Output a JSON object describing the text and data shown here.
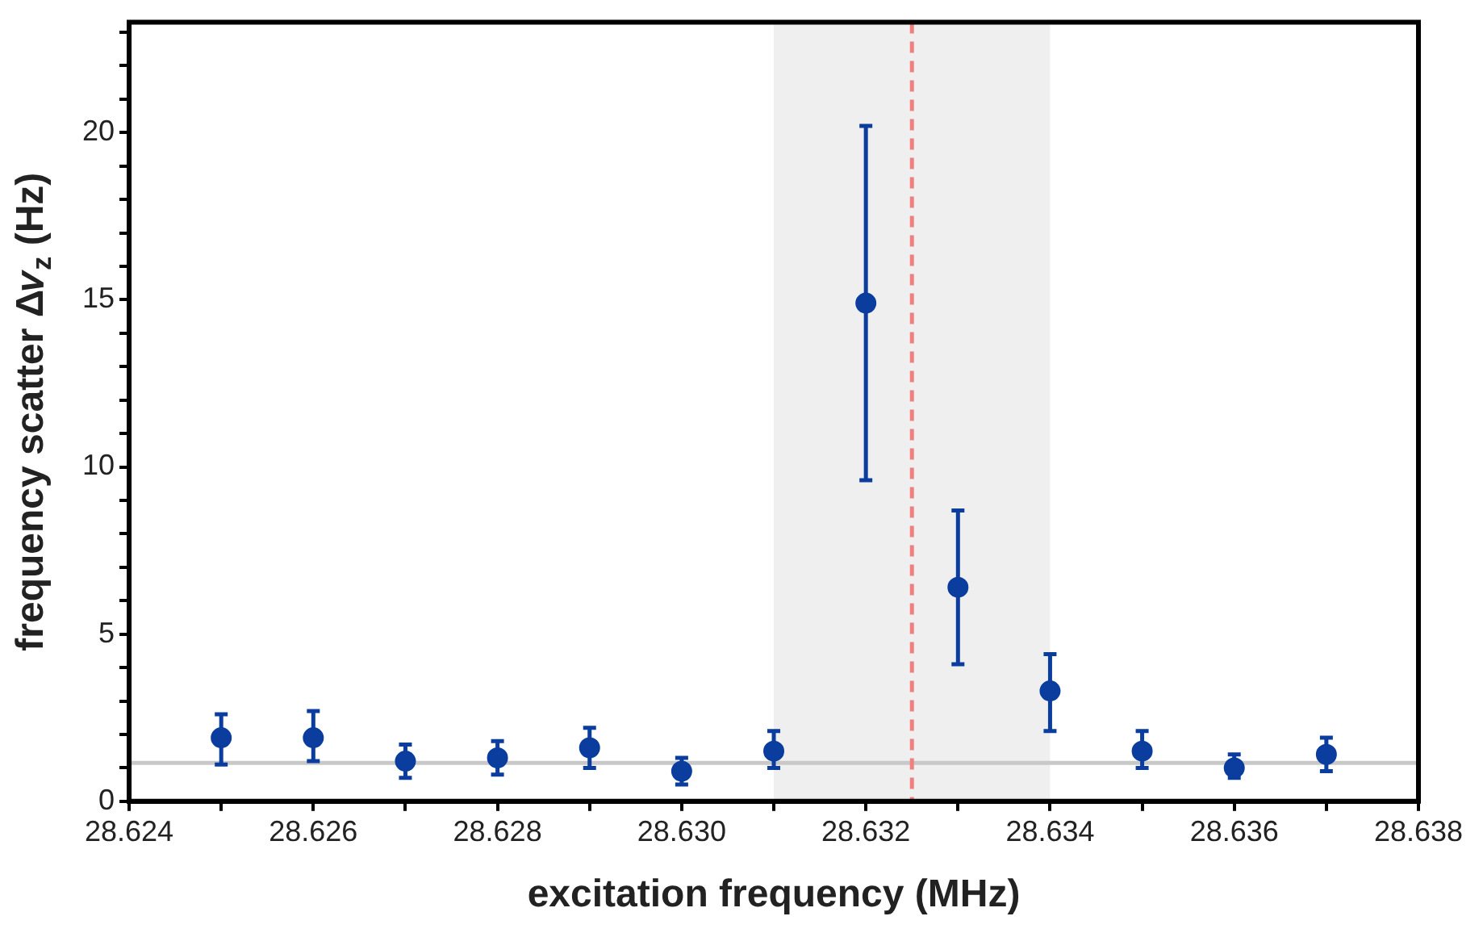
{
  "chart_data": {
    "type": "scatter",
    "xlabel": "excitation frequency (MHz)",
    "ylabel": "frequency scatter Δ𝜈$_{z}$ (Hz)",
    "xlim": [
      28.624,
      28.638
    ],
    "xticks": [
      28.624,
      {
        "value": 28.625,
        "label": null
      },
      28.626,
      {
        "value": 28.627,
        "label": null
      },
      28.628,
      {
        "value": 28.629,
        "label": null
      },
      {
        "value": 28.63,
        "label": "28.630"
      },
      {
        "value": 28.631,
        "label": null
      },
      28.632,
      {
        "value": 28.633,
        "label": null
      },
      28.634,
      {
        "value": 28.635,
        "label": null
      },
      28.636,
      {
        "value": 28.637,
        "label": null
      },
      28.638
    ],
    "ylim": [
      0,
      23.3
    ],
    "yticks": [
      0,
      {
        "value": 1,
        "label": null
      },
      {
        "value": 2,
        "label": null
      },
      {
        "value": 3,
        "label": null
      },
      {
        "value": 4,
        "label": null
      },
      5,
      {
        "value": 6,
        "label": null
      },
      {
        "value": 7,
        "label": null
      },
      {
        "value": 8,
        "label": null
      },
      {
        "value": 9,
        "label": null
      },
      10,
      {
        "value": 11,
        "label": null
      },
      {
        "value": 12,
        "label": null
      },
      {
        "value": 13,
        "label": null
      },
      {
        "value": 14,
        "label": null
      },
      15,
      {
        "value": 16,
        "label": null
      },
      {
        "value": 17,
        "label": null
      },
      {
        "value": 18,
        "label": null
      },
      {
        "value": 19,
        "label": null
      },
      20,
      {
        "value": 21,
        "label": null
      },
      {
        "value": 22,
        "label": null
      },
      {
        "value": 23,
        "label": null
      }
    ],
    "grid": false,
    "legend": false,
    "marker": "circle",
    "series": [
      {
        "color": "#0a3d9e",
        "x": [
          28.625,
          28.626,
          28.627,
          28.628,
          28.629,
          28.63,
          28.631,
          28.632,
          28.633,
          28.634,
          28.635,
          28.636,
          28.637
        ],
        "values": [
          1.9,
          1.9,
          1.2,
          1.3,
          1.6,
          0.9,
          1.5,
          14.9,
          6.4,
          3.3,
          1.5,
          1.0,
          1.4
        ],
        "errors": [
          [
            1.1,
            2.6
          ],
          [
            1.2,
            2.7
          ],
          [
            0.7,
            1.7
          ],
          [
            0.8,
            1.8
          ],
          [
            1.0,
            2.2
          ],
          [
            0.5,
            1.3
          ],
          [
            1.0,
            2.1
          ],
          [
            9.6,
            20.2
          ],
          [
            4.1,
            8.7
          ],
          [
            2.1,
            4.4
          ],
          [
            1.0,
            2.1
          ],
          [
            0.7,
            1.4
          ],
          [
            0.9,
            1.9
          ]
        ]
      }
    ],
    "ref_lines": [
      {
        "axis": "y",
        "value": 1.15,
        "color": "#c8c8c8",
        "line_style": "solid"
      },
      {
        "axis": "x",
        "value": 28.6325,
        "color": "#f08080",
        "line_style": "dashed"
      }
    ],
    "bands": [
      {
        "axis": "x",
        "from": 28.631,
        "to": 28.634,
        "color": "#efefef"
      }
    ]
  }
}
